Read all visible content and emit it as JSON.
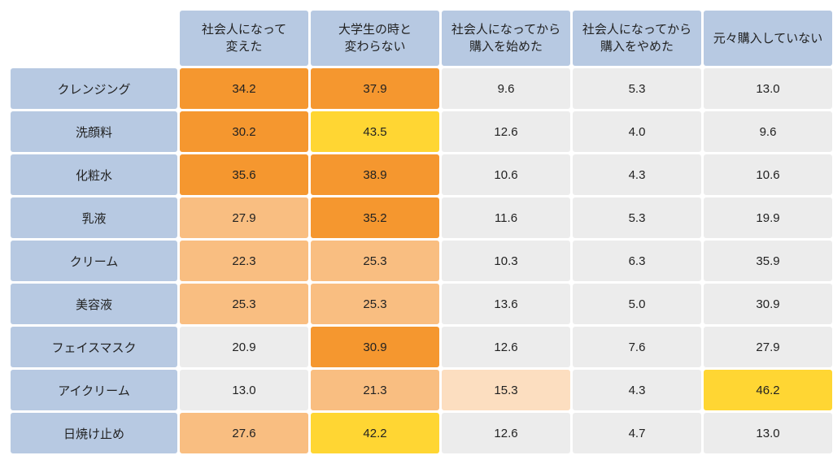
{
  "colors": {
    "header_bg": "#b7c9e2",
    "row_header_bg": "#b7c9e2",
    "text": "#222222",
    "tier_orange_dark": "#f5972f",
    "tier_orange_mid": "#f9be81",
    "tier_orange_light": "#fcdec0",
    "tier_yellow": "#ffd633",
    "tier_neutral": "#ececec"
  },
  "columns": [
    "社会人になって\n変えた",
    "大学生の時と\n変わらない",
    "社会人になってから\n購入を始めた",
    "社会人になってから\n購入をやめた",
    "元々購入していない"
  ],
  "row_labels": [
    "クレンジング",
    "洗顔料",
    "化粧水",
    "乳液",
    "クリーム",
    "美容液",
    "フェイスマスク",
    "アイクリーム",
    "日焼け止め"
  ],
  "cells": [
    [
      {
        "v": "34.2",
        "c": "tier_orange_dark"
      },
      {
        "v": "37.9",
        "c": "tier_orange_dark"
      },
      {
        "v": "9.6",
        "c": "tier_neutral"
      },
      {
        "v": "5.3",
        "c": "tier_neutral"
      },
      {
        "v": "13.0",
        "c": "tier_neutral"
      }
    ],
    [
      {
        "v": "30.2",
        "c": "tier_orange_dark"
      },
      {
        "v": "43.5",
        "c": "tier_yellow"
      },
      {
        "v": "12.6",
        "c": "tier_neutral"
      },
      {
        "v": "4.0",
        "c": "tier_neutral"
      },
      {
        "v": "9.6",
        "c": "tier_neutral"
      }
    ],
    [
      {
        "v": "35.6",
        "c": "tier_orange_dark"
      },
      {
        "v": "38.9",
        "c": "tier_orange_dark"
      },
      {
        "v": "10.6",
        "c": "tier_neutral"
      },
      {
        "v": "4.3",
        "c": "tier_neutral"
      },
      {
        "v": "10.6",
        "c": "tier_neutral"
      }
    ],
    [
      {
        "v": "27.9",
        "c": "tier_orange_mid"
      },
      {
        "v": "35.2",
        "c": "tier_orange_dark"
      },
      {
        "v": "11.6",
        "c": "tier_neutral"
      },
      {
        "v": "5.3",
        "c": "tier_neutral"
      },
      {
        "v": "19.9",
        "c": "tier_neutral"
      }
    ],
    [
      {
        "v": "22.3",
        "c": "tier_orange_mid"
      },
      {
        "v": "25.3",
        "c": "tier_orange_mid"
      },
      {
        "v": "10.3",
        "c": "tier_neutral"
      },
      {
        "v": "6.3",
        "c": "tier_neutral"
      },
      {
        "v": "35.9",
        "c": "tier_neutral"
      }
    ],
    [
      {
        "v": "25.3",
        "c": "tier_orange_mid"
      },
      {
        "v": "25.3",
        "c": "tier_orange_mid"
      },
      {
        "v": "13.6",
        "c": "tier_neutral"
      },
      {
        "v": "5.0",
        "c": "tier_neutral"
      },
      {
        "v": "30.9",
        "c": "tier_neutral"
      }
    ],
    [
      {
        "v": "20.9",
        "c": "tier_neutral"
      },
      {
        "v": "30.9",
        "c": "tier_orange_dark"
      },
      {
        "v": "12.6",
        "c": "tier_neutral"
      },
      {
        "v": "7.6",
        "c": "tier_neutral"
      },
      {
        "v": "27.9",
        "c": "tier_neutral"
      }
    ],
    [
      {
        "v": "13.0",
        "c": "tier_neutral"
      },
      {
        "v": "21.3",
        "c": "tier_orange_mid"
      },
      {
        "v": "15.3",
        "c": "tier_orange_light"
      },
      {
        "v": "4.3",
        "c": "tier_neutral"
      },
      {
        "v": "46.2",
        "c": "tier_yellow"
      }
    ],
    [
      {
        "v": "27.6",
        "c": "tier_orange_mid"
      },
      {
        "v": "42.2",
        "c": "tier_yellow"
      },
      {
        "v": "12.6",
        "c": "tier_neutral"
      },
      {
        "v": "4.7",
        "c": "tier_neutral"
      },
      {
        "v": "13.0",
        "c": "tier_neutral"
      }
    ]
  ]
}
